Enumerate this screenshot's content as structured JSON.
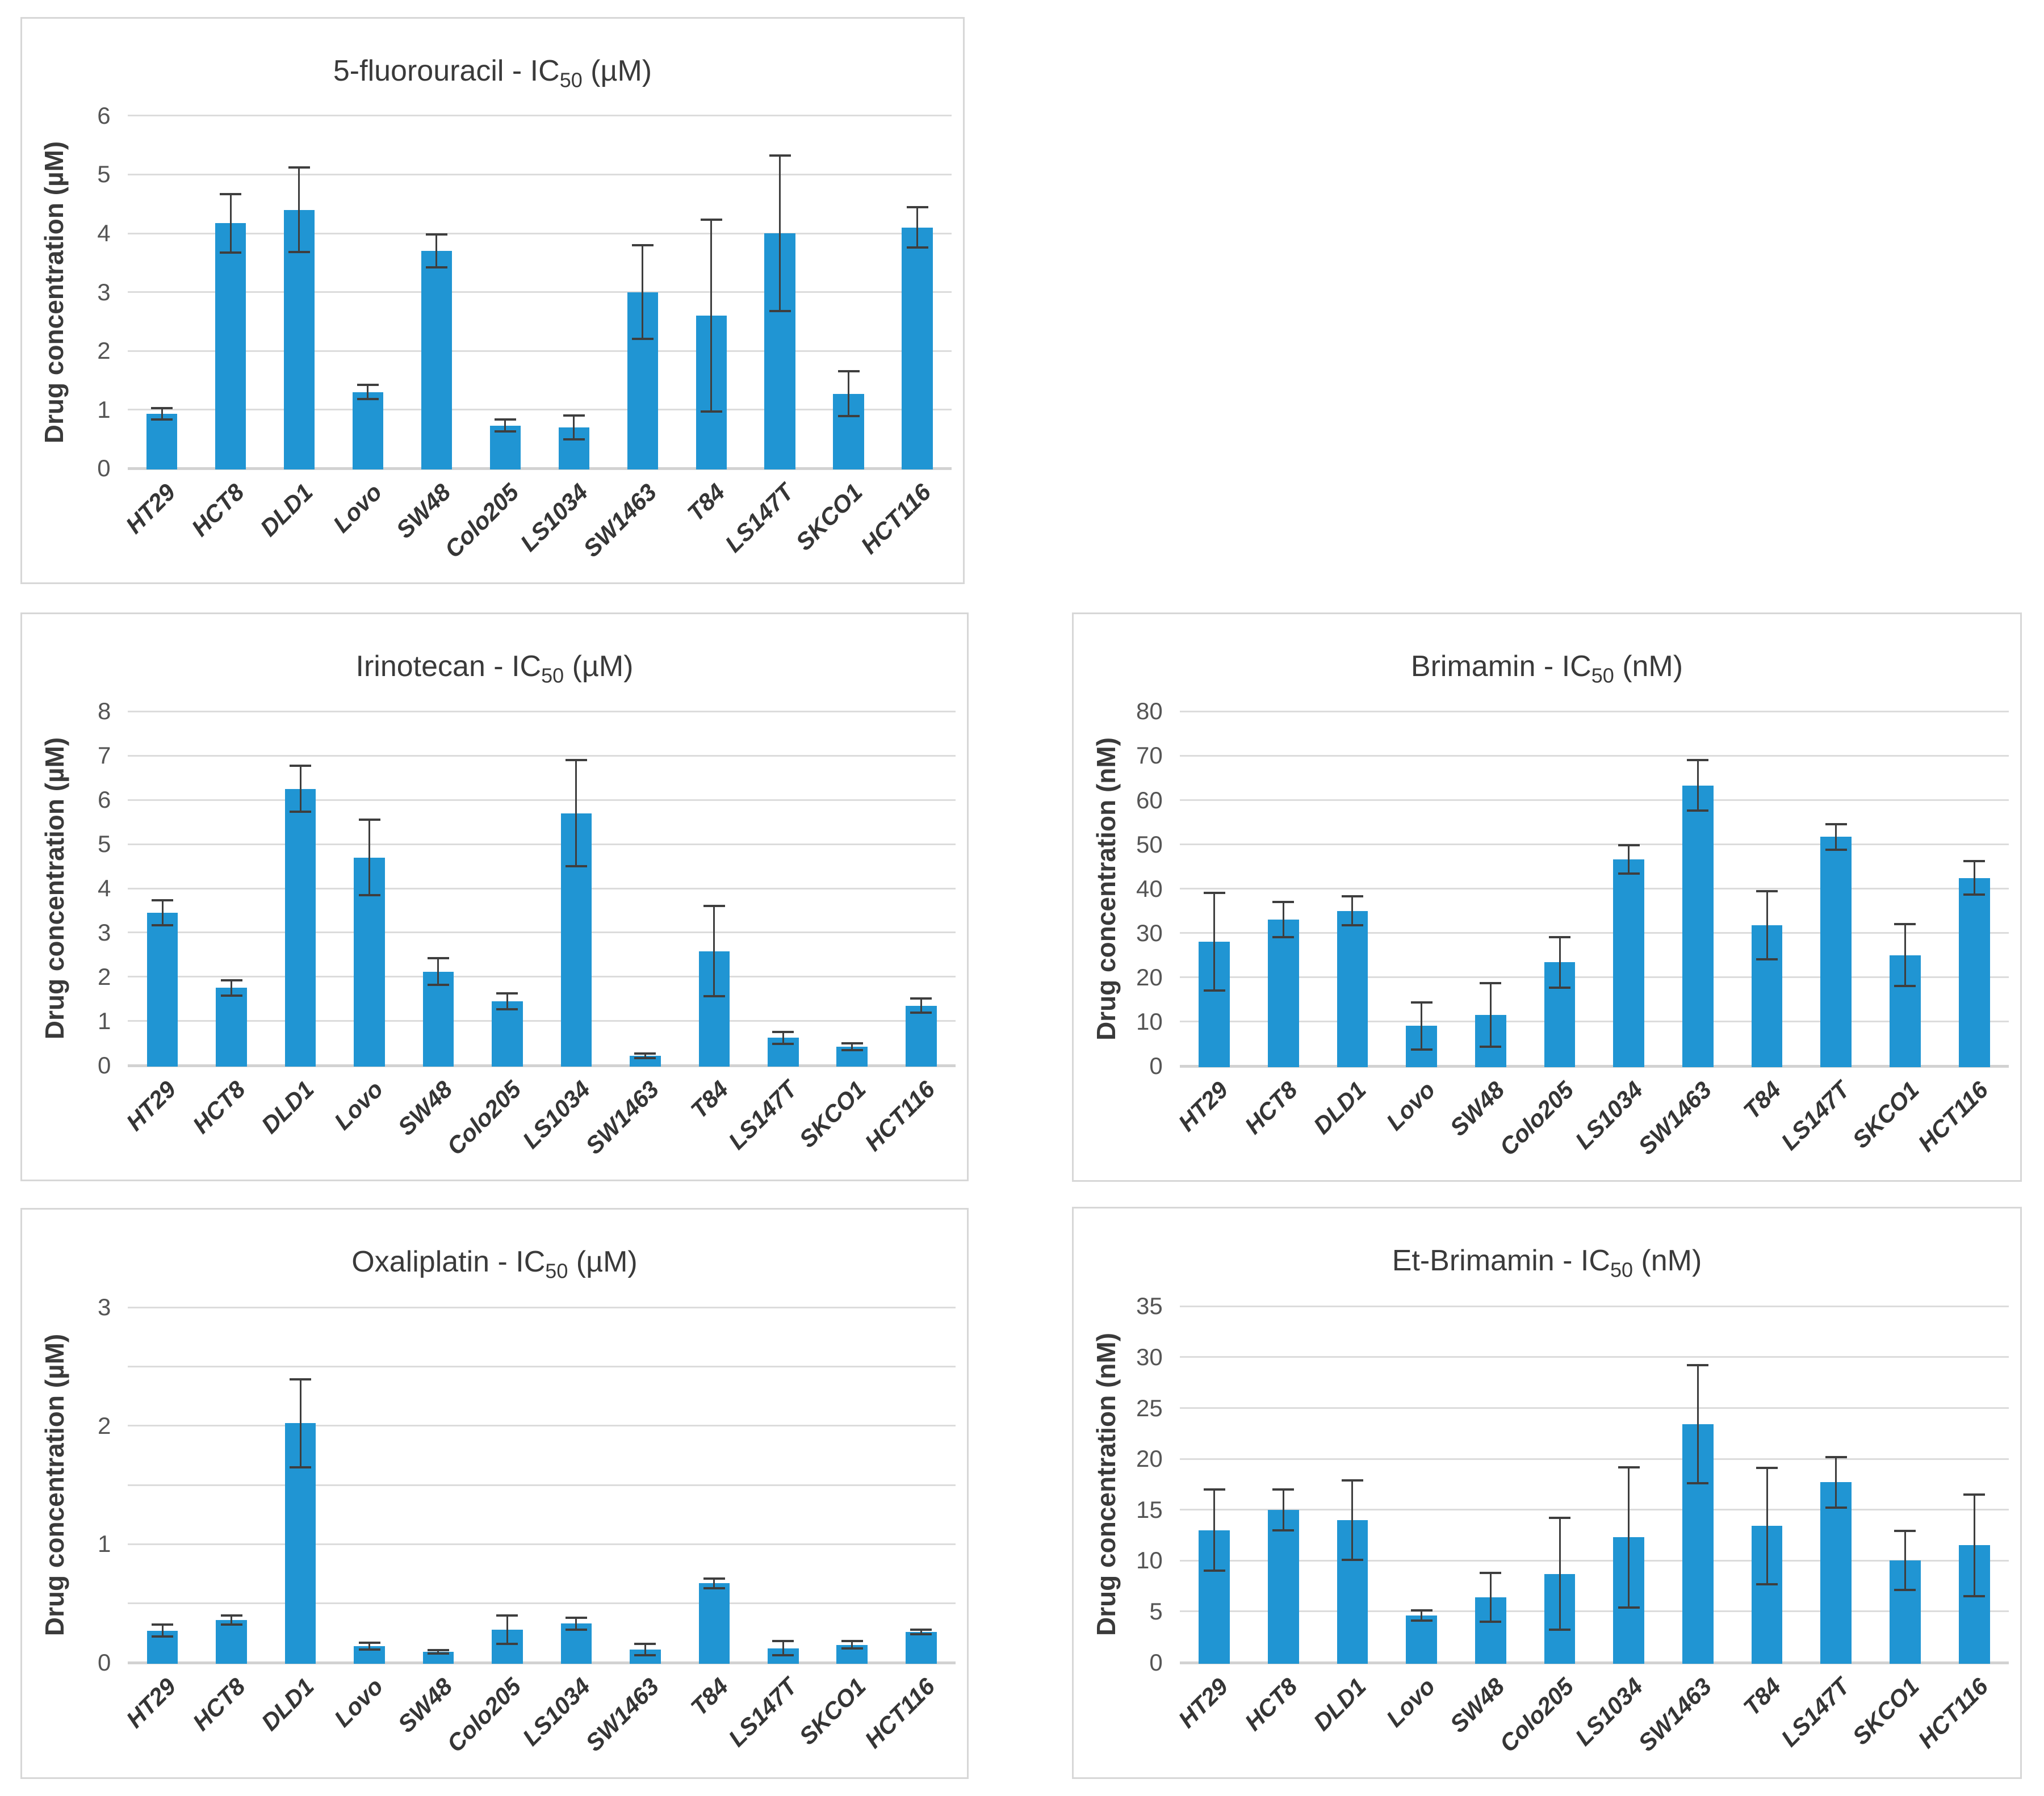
{
  "figure": {
    "bar_color": "#2095d3",
    "grid_color": "#dcdcdc",
    "axis_line_color": "#d2d2d2",
    "error_bar_color": "#3e3e3e",
    "title_color": "#3a3a3a",
    "tick_label_color": "#555555",
    "category_label_color": "#353535",
    "background_color": "#ffffff"
  },
  "chart_data": [
    {
      "type": "bar",
      "title": {
        "prefix": "5-fluorouracil - IC",
        "sub": "50",
        "suffix": " (µM)"
      },
      "ylabel": "Drug concentration (µM)",
      "ylim": [
        0,
        6
      ],
      "grid_step": 1,
      "label_step": 1,
      "grid": true,
      "legend": "none",
      "categories": [
        "HT29",
        "HCT8",
        "DLD1",
        "Lovo",
        "SW48",
        "Colo205",
        "LS1034",
        "SW1463",
        "T84",
        "LS147T",
        "SKCO1",
        "HCT116"
      ],
      "values": [
        0.93,
        4.17,
        4.4,
        1.3,
        3.7,
        0.73,
        0.7,
        3.0,
        2.6,
        4.0,
        1.27,
        4.1
      ],
      "errors": [
        0.1,
        0.5,
        0.72,
        0.12,
        0.28,
        0.1,
        0.2,
        0.8,
        1.63,
        1.32,
        0.38,
        0.34
      ]
    },
    {
      "type": "bar",
      "title": {
        "prefix": "Irinotecan - IC",
        "sub": "50",
        "suffix": " (µM)"
      },
      "ylabel": "Drug concentration (µM)",
      "ylim": [
        0,
        8
      ],
      "grid_step": 1,
      "label_step": 1,
      "grid": true,
      "legend": "none",
      "categories": [
        "HT29",
        "HCT8",
        "DLD1",
        "Lovo",
        "SW48",
        "Colo205",
        "LS1034",
        "SW1463",
        "T84",
        "LS147T",
        "SKCO1",
        "HCT116"
      ],
      "values": [
        3.45,
        1.75,
        6.25,
        4.7,
        2.12,
        1.45,
        5.7,
        0.22,
        2.58,
        0.62,
        0.42,
        1.35
      ],
      "errors": [
        0.28,
        0.17,
        0.52,
        0.85,
        0.3,
        0.18,
        1.2,
        0.05,
        1.02,
        0.13,
        0.08,
        0.16
      ]
    },
    {
      "type": "bar",
      "title": {
        "prefix": "Brimamin - IC",
        "sub": "50",
        "suffix": " (nM)"
      },
      "ylabel": "Drug concentration (nM)",
      "ylim": [
        0,
        80
      ],
      "grid_step": 10,
      "label_step": 10,
      "grid": true,
      "legend": "none",
      "categories": [
        "HT29",
        "HCT8",
        "DLD1",
        "Lovo",
        "SW48",
        "Colo205",
        "LS1034",
        "SW1463",
        "T84",
        "LS147T",
        "SKCO1",
        "HCT116"
      ],
      "values": [
        28,
        33,
        35,
        9,
        11.5,
        23.4,
        46.6,
        63.3,
        31.7,
        51.7,
        25,
        42.4
      ],
      "errors": [
        11,
        4,
        3.3,
        5.3,
        7.2,
        5.7,
        3.2,
        5.7,
        7.7,
        2.9,
        7,
        3.8
      ]
    },
    {
      "type": "bar",
      "title": {
        "prefix": "Oxaliplatin - IC",
        "sub": "50",
        "suffix": " (µM)"
      },
      "ylabel": "Drug concentration (µM)",
      "ylim": [
        0,
        3
      ],
      "grid_step": 0.5,
      "label_step": 1,
      "grid": true,
      "legend": "none",
      "categories": [
        "HT29",
        "HCT8",
        "DLD1",
        "Lovo",
        "SW48",
        "Colo205",
        "LS1034",
        "SW1463",
        "T84",
        "LS147T",
        "SKCO1",
        "HCT116"
      ],
      "values": [
        0.27,
        0.36,
        2.02,
        0.14,
        0.09,
        0.28,
        0.33,
        0.11,
        0.67,
        0.12,
        0.15,
        0.26
      ],
      "errors": [
        0.05,
        0.04,
        0.37,
        0.03,
        0.015,
        0.12,
        0.05,
        0.05,
        0.04,
        0.06,
        0.03,
        0.02
      ]
    },
    {
      "type": "bar",
      "title": {
        "prefix": "Et-Brimamin - IC",
        "sub": "50",
        "suffix": " (nM)"
      },
      "ylabel": "Drug concentration (nM)",
      "ylim": [
        0,
        35
      ],
      "grid_step": 5,
      "label_step": 5,
      "grid": true,
      "legend": "none",
      "categories": [
        "HT29",
        "HCT8",
        "DLD1",
        "Lovo",
        "SW48",
        "Colo205",
        "LS1034",
        "SW1463",
        "T84",
        "LS147T",
        "SKCO1",
        "HCT116"
      ],
      "values": [
        13,
        15,
        14,
        4.6,
        6.4,
        8.7,
        12.3,
        23.4,
        13.4,
        17.7,
        10,
        11.5
      ],
      "errors": [
        4,
        2,
        3.9,
        0.5,
        2.4,
        5.5,
        6.9,
        5.8,
        5.7,
        2.5,
        2.9,
        5
      ]
    }
  ]
}
